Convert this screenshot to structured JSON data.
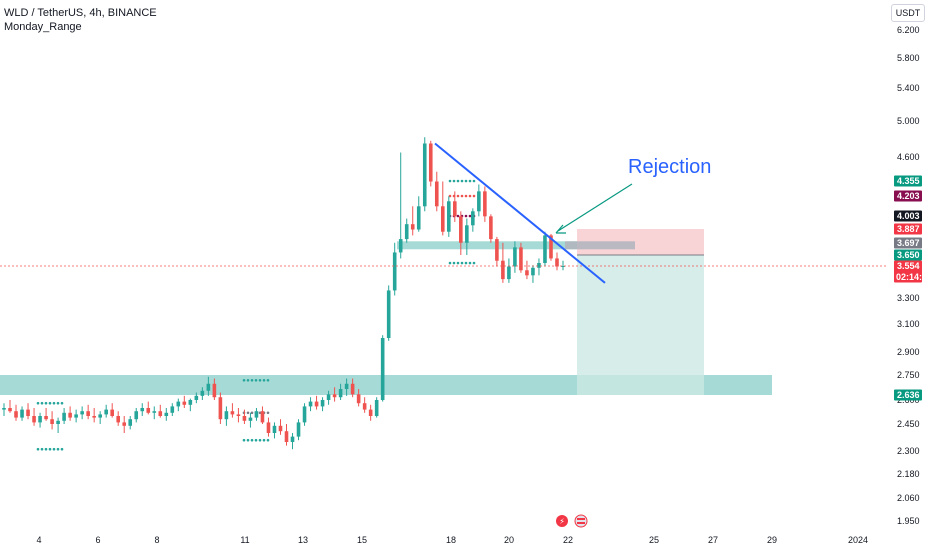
{
  "header": {
    "title": "WLD / TetherUS, 4h, BINANCE",
    "indicator": "Monday_Range"
  },
  "price_axis": {
    "unit_button": "USDT",
    "ticks": [
      "6.200",
      "5.800",
      "5.400",
      "5.000",
      "4.600",
      "4.203",
      "3.697",
      "3.300",
      "3.100",
      "2.900",
      "2.750",
      "2.600",
      "2.450",
      "2.300",
      "2.180",
      "2.060",
      "1.950"
    ]
  },
  "time_axis": {
    "ticks": [
      "4",
      "6",
      "8",
      "11",
      "13",
      "15",
      "18",
      "20",
      "22",
      "25",
      "27",
      "29",
      "2024"
    ]
  },
  "price_badges": [
    {
      "text": "4.355",
      "color": "#089981"
    },
    {
      "text": "4.203",
      "color": "#880e4f"
    },
    {
      "text": "4.003",
      "color": "#131722"
    },
    {
      "text": "3.887",
      "color": "#f23645"
    },
    {
      "text": "3.697",
      "color": "#787b86"
    },
    {
      "text": "3.650",
      "color": "#089981"
    },
    {
      "text": "3.554",
      "color": "#f23645",
      "sub": "02:14:31"
    },
    {
      "text": "2.636",
      "color": "#089981"
    }
  ],
  "annotation": {
    "text": "Rejection",
    "color": "#2962ff"
  },
  "colors": {
    "up": "#26a69a",
    "down": "#ef5350",
    "support_zone": "#80cbc4",
    "trendline": "#2962ff",
    "arrow": "#089981",
    "stop_zone": "#f8c9cc",
    "target_zone": "#cce9e4",
    "current_price_line": "#ef5350"
  },
  "chart_data": {
    "type": "candlestick",
    "symbol": "WLD / TetherUS",
    "interval": "4h",
    "exchange": "BINANCE",
    "indicator": "Monday_Range",
    "y_unit": "USDT",
    "y_range": [
      1.95,
      6.2
    ],
    "x_ticks": [
      "4",
      "6",
      "8",
      "11",
      "13",
      "15",
      "18",
      "20",
      "22",
      "25",
      "27",
      "29",
      "2024"
    ],
    "last_price": 3.554,
    "countdown": "02:14:31",
    "support_zone": [
      2.636,
      2.75
    ],
    "resistance_zone": [
      3.65,
      3.72
    ],
    "trade_position": {
      "side": "short",
      "entry": 3.65,
      "stop": 3.887,
      "target": 2.636
    },
    "trendline": {
      "from_price": 4.75,
      "to_price": 3.42
    },
    "annotation": "Rejection",
    "candles": [
      [
        2.54,
        2.58,
        2.5,
        2.55
      ],
      [
        2.55,
        2.6,
        2.52,
        2.53
      ],
      [
        2.53,
        2.57,
        2.47,
        2.49
      ],
      [
        2.49,
        2.56,
        2.47,
        2.54
      ],
      [
        2.54,
        2.58,
        2.48,
        2.5
      ],
      [
        2.5,
        2.55,
        2.44,
        2.46
      ],
      [
        2.46,
        2.52,
        2.43,
        2.5
      ],
      [
        2.5,
        2.55,
        2.47,
        2.48
      ],
      [
        2.48,
        2.53,
        2.42,
        2.45
      ],
      [
        2.45,
        2.49,
        2.4,
        2.47
      ],
      [
        2.47,
        2.55,
        2.45,
        2.52
      ],
      [
        2.52,
        2.56,
        2.47,
        2.49
      ],
      [
        2.49,
        2.54,
        2.46,
        2.51
      ],
      [
        2.51,
        2.56,
        2.48,
        2.53
      ],
      [
        2.53,
        2.57,
        2.48,
        2.5
      ],
      [
        2.5,
        2.55,
        2.46,
        2.49
      ],
      [
        2.49,
        2.53,
        2.45,
        2.51
      ],
      [
        2.51,
        2.57,
        2.49,
        2.54
      ],
      [
        2.54,
        2.58,
        2.49,
        2.5
      ],
      [
        2.5,
        2.53,
        2.44,
        2.46
      ],
      [
        2.46,
        2.5,
        2.4,
        2.44
      ],
      [
        2.44,
        2.5,
        2.42,
        2.48
      ],
      [
        2.48,
        2.55,
        2.46,
        2.53
      ],
      [
        2.53,
        2.58,
        2.5,
        2.55
      ],
      [
        2.55,
        2.59,
        2.51,
        2.52
      ],
      [
        2.52,
        2.56,
        2.48,
        2.53
      ],
      [
        2.53,
        2.57,
        2.49,
        2.5
      ],
      [
        2.5,
        2.55,
        2.47,
        2.52
      ],
      [
        2.52,
        2.58,
        2.5,
        2.56
      ],
      [
        2.56,
        2.61,
        2.53,
        2.59
      ],
      [
        2.59,
        2.63,
        2.55,
        2.57
      ],
      [
        2.57,
        2.61,
        2.53,
        2.6
      ],
      [
        2.6,
        2.65,
        2.58,
        2.63
      ],
      [
        2.63,
        2.68,
        2.6,
        2.66
      ],
      [
        2.66,
        2.74,
        2.63,
        2.7
      ],
      [
        2.7,
        2.73,
        2.6,
        2.62
      ],
      [
        2.62,
        2.65,
        2.45,
        2.48
      ],
      [
        2.48,
        2.56,
        2.44,
        2.53
      ],
      [
        2.53,
        2.58,
        2.49,
        2.51
      ],
      [
        2.51,
        2.55,
        2.46,
        2.5
      ],
      [
        2.5,
        2.54,
        2.45,
        2.47
      ],
      [
        2.47,
        2.52,
        2.43,
        2.49
      ],
      [
        2.49,
        2.55,
        2.47,
        2.53
      ],
      [
        2.53,
        2.56,
        2.45,
        2.46
      ],
      [
        2.46,
        2.49,
        2.38,
        2.4
      ],
      [
        2.4,
        2.46,
        2.37,
        2.44
      ],
      [
        2.44,
        2.48,
        2.39,
        2.41
      ],
      [
        2.41,
        2.45,
        2.33,
        2.35
      ],
      [
        2.35,
        2.4,
        2.31,
        2.38
      ],
      [
        2.38,
        2.48,
        2.36,
        2.46
      ],
      [
        2.46,
        2.58,
        2.44,
        2.56
      ],
      [
        2.56,
        2.62,
        2.53,
        2.59
      ],
      [
        2.59,
        2.63,
        2.54,
        2.56
      ],
      [
        2.56,
        2.62,
        2.53,
        2.6
      ],
      [
        2.6,
        2.66,
        2.57,
        2.64
      ],
      [
        2.64,
        2.68,
        2.59,
        2.62
      ],
      [
        2.62,
        2.7,
        2.6,
        2.67
      ],
      [
        2.67,
        2.73,
        2.63,
        2.7
      ],
      [
        2.7,
        2.73,
        2.62,
        2.64
      ],
      [
        2.64,
        2.67,
        2.56,
        2.58
      ],
      [
        2.58,
        2.62,
        2.52,
        2.54
      ],
      [
        2.54,
        2.57,
        2.47,
        2.5
      ],
      [
        2.5,
        2.62,
        2.49,
        2.6
      ],
      [
        2.6,
        3.02,
        2.59,
        3.0
      ],
      [
        3.0,
        3.4,
        2.98,
        3.36
      ],
      [
        3.36,
        3.7,
        3.32,
        3.66
      ],
      [
        3.66,
        4.65,
        3.62,
        3.75
      ],
      [
        3.75,
        3.98,
        3.7,
        3.93
      ],
      [
        3.93,
        4.1,
        3.8,
        3.88
      ],
      [
        3.88,
        4.2,
        3.85,
        4.1
      ],
      [
        4.1,
        4.82,
        4.05,
        4.75
      ],
      [
        4.75,
        4.78,
        4.3,
        4.35
      ],
      [
        4.35,
        4.45,
        4.05,
        4.1
      ],
      [
        4.1,
        4.35,
        3.8,
        3.85
      ],
      [
        3.85,
        4.2,
        3.78,
        4.15
      ],
      [
        4.15,
        4.25,
        3.95,
        4.0
      ],
      [
        4.0,
        4.05,
        3.65,
        3.7
      ],
      [
        3.7,
        3.98,
        3.65,
        3.92
      ],
      [
        3.92,
        4.08,
        3.85,
        4.05
      ],
      [
        4.05,
        4.32,
        4.0,
        4.25
      ],
      [
        4.25,
        4.3,
        3.95,
        4.0
      ],
      [
        4.0,
        4.02,
        3.7,
        3.75
      ],
      [
        3.75,
        3.78,
        3.55,
        3.6
      ],
      [
        3.6,
        3.7,
        3.42,
        3.45
      ],
      [
        3.45,
        3.62,
        3.42,
        3.55
      ],
      [
        3.55,
        3.72,
        3.5,
        3.68
      ],
      [
        3.68,
        3.7,
        3.5,
        3.52
      ],
      [
        3.52,
        3.6,
        3.45,
        3.48
      ],
      [
        3.48,
        3.56,
        3.42,
        3.54
      ],
      [
        3.54,
        3.62,
        3.48,
        3.58
      ],
      [
        3.58,
        3.85,
        3.55,
        3.8
      ],
      [
        3.8,
        3.82,
        3.6,
        3.62
      ],
      [
        3.62,
        3.66,
        3.52,
        3.55
      ],
      [
        3.55,
        3.6,
        3.52,
        3.554
      ]
    ]
  }
}
